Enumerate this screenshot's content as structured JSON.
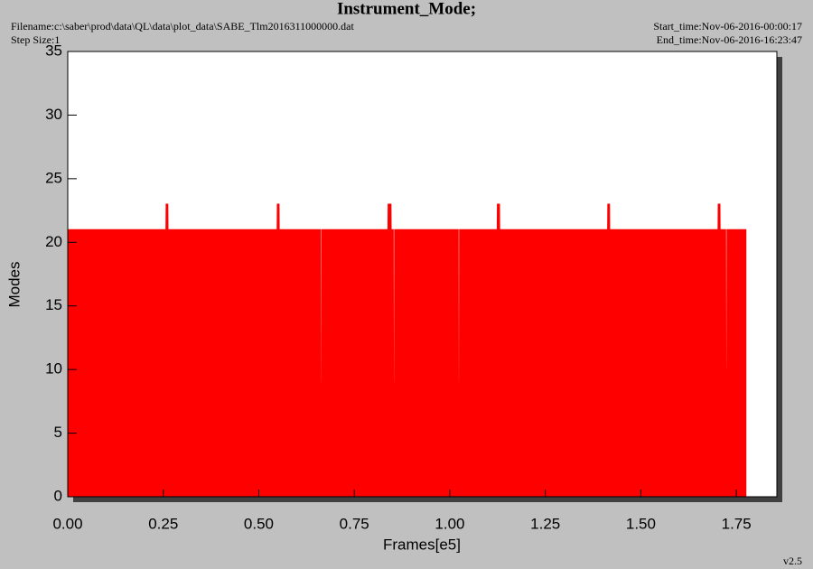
{
  "chart_data": {
    "type": "area",
    "title": "Instrument_Mode;",
    "filename": "Filename:c:\\saber\\prod\\data\\QL\\data\\plot_data\\SABE_Tlm2016311000000.dat",
    "step_size": "Step Size:1",
    "start_time": "Start_time:Nov-06-2016-00:00:17",
    "end_time": "End_time:Nov-06-2016-16:23:47",
    "x_label": "Frames[e5]",
    "y_label": "Modes",
    "version": "v2.5",
    "color": "#ff0000",
    "x": [
      0,
      0.257,
      0.2575,
      0.262,
      0.2625,
      0.548,
      0.5485,
      0.553,
      0.5535,
      0.662,
      0.6625,
      0.665,
      0.6655,
      0.838,
      0.8385,
      0.846,
      0.8465,
      0.852,
      0.8525,
      0.855,
      0.8555,
      1.022,
      1.0225,
      1.025,
      1.0255,
      1.124,
      1.1245,
      1.13,
      1.1305,
      1.413,
      1.4135,
      1.418,
      1.4185,
      1.702,
      1.7025,
      1.707,
      1.7075,
      1.722,
      1.7225,
      1.725,
      1.7255,
      1.775
    ],
    "values": [
      21,
      21,
      23,
      23,
      21,
      21,
      23,
      23,
      21,
      21,
      9,
      9,
      21,
      21,
      23,
      23,
      21,
      21,
      9,
      9,
      21,
      21,
      9,
      9,
      21,
      21,
      23,
      23,
      21,
      21,
      23,
      23,
      21,
      21,
      23,
      23,
      21,
      21,
      10,
      10,
      21,
      21
    ],
    "xlim": [
      0,
      1.856
    ],
    "ylim": [
      0,
      35
    ],
    "xticks": [
      {
        "value": 0,
        "label": "0.00"
      },
      {
        "value": 0.25,
        "label": "0.25"
      },
      {
        "value": 0.5,
        "label": "0.50"
      },
      {
        "value": 0.75,
        "label": "0.75"
      },
      {
        "value": 1,
        "label": "1.00"
      },
      {
        "value": 1.25,
        "label": "1.25"
      },
      {
        "value": 1.5,
        "label": "1.50"
      },
      {
        "value": 1.75,
        "label": "1.75"
      }
    ],
    "yticks": [
      0,
      5,
      10,
      15,
      20,
      25,
      30,
      35
    ]
  }
}
